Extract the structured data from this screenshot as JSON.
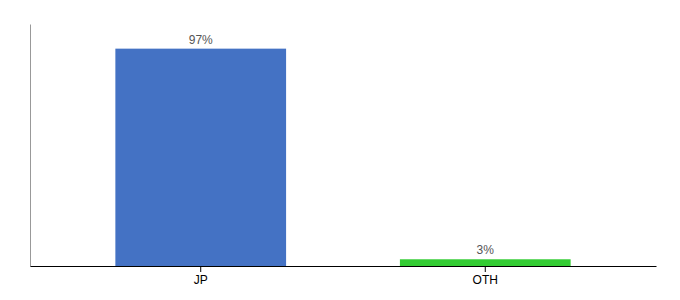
{
  "chart_data": {
    "type": "bar",
    "categories": [
      "JP",
      "OTH"
    ],
    "values": [
      97,
      3
    ],
    "value_labels": [
      "97%",
      "3%"
    ],
    "colors": [
      "#4472c4",
      "#33cc33"
    ],
    "ylim": [
      0,
      108
    ],
    "data_labels": true,
    "tick_labels": "x",
    "grid": false
  }
}
